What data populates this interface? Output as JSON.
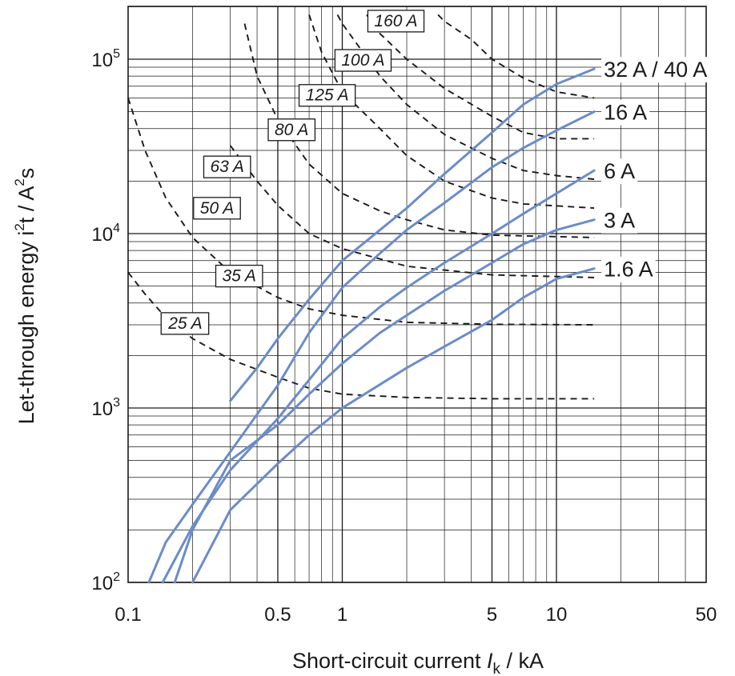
{
  "chart_data": {
    "type": "line",
    "xscale": "log",
    "yscale": "log",
    "xlim": [
      0.1,
      50
    ],
    "ylim": [
      100,
      200000
    ],
    "grid": true,
    "xlabel": {
      "prefix": "Short-circuit current ",
      "italic": "I",
      "subscript": "k",
      "suffix": " / kA"
    },
    "ylabel": {
      "a": "Let-through energy i",
      "sup1": "2",
      "b": "t / A",
      "sup2": "2",
      "c": "s"
    },
    "x_ticks": [
      {
        "value": 0.1,
        "label": "0.1"
      },
      {
        "value": 0.5,
        "label": "0.5"
      },
      {
        "value": 1,
        "label": "1"
      },
      {
        "value": 5,
        "label": "5"
      },
      {
        "value": 10,
        "label": "10"
      },
      {
        "value": 50,
        "label": "50"
      }
    ],
    "y_ticks": [
      {
        "value": 100,
        "base": "10",
        "exp": "2"
      },
      {
        "value": 1000,
        "base": "10",
        "exp": "3"
      },
      {
        "value": 10000,
        "base": "10",
        "exp": "4"
      },
      {
        "value": 100000,
        "base": "10",
        "exp": "5"
      }
    ],
    "series": [
      {
        "name": "1.6 A",
        "color": "#6b8cc8",
        "points": [
          [
            0.2,
            100
          ],
          [
            0.3,
            260
          ],
          [
            0.5,
            480
          ],
          [
            0.7,
            700
          ],
          [
            1,
            1000
          ],
          [
            2,
            1700
          ],
          [
            3,
            2250
          ],
          [
            5,
            3200
          ],
          [
            7,
            4300
          ],
          [
            10,
            5500
          ],
          [
            15,
            6300
          ]
        ]
      },
      {
        "name": "3 A",
        "color": "#6b8cc8",
        "points": [
          [
            0.165,
            100
          ],
          [
            0.2,
            200
          ],
          [
            0.3,
            500
          ],
          [
            0.5,
            800
          ],
          [
            0.7,
            1200
          ],
          [
            1,
            1800
          ],
          [
            1.5,
            2700
          ],
          [
            2,
            3400
          ],
          [
            3,
            4700
          ],
          [
            5,
            6800
          ],
          [
            7,
            8700
          ],
          [
            10,
            10500
          ],
          [
            15,
            12000
          ]
        ]
      },
      {
        "name": "6 A",
        "color": "#6b8cc8",
        "points": [
          [
            0.145,
            100
          ],
          [
            0.2,
            210
          ],
          [
            0.3,
            440
          ],
          [
            0.5,
            870
          ],
          [
            0.7,
            1450
          ],
          [
            1,
            2500
          ],
          [
            1.5,
            3800
          ],
          [
            2,
            4900
          ],
          [
            3,
            6800
          ],
          [
            5,
            10000
          ],
          [
            7,
            13000
          ],
          [
            10,
            17000
          ],
          [
            15,
            23000
          ]
        ]
      },
      {
        "name": "16 A",
        "color": "#6b8cc8",
        "points": [
          [
            0.125,
            100
          ],
          [
            0.15,
            170
          ],
          [
            0.2,
            280
          ],
          [
            0.3,
            560
          ],
          [
            0.5,
            1350
          ],
          [
            0.7,
            2700
          ],
          [
            1,
            4900
          ],
          [
            1.5,
            7700
          ],
          [
            2,
            10500
          ],
          [
            3,
            15000
          ],
          [
            5,
            24000
          ],
          [
            7,
            31000
          ],
          [
            10,
            39000
          ],
          [
            15,
            50000
          ]
        ]
      },
      {
        "name": "32 A / 40 A",
        "color": "#6b8cc8",
        "points": [
          [
            0.3,
            1100
          ],
          [
            0.4,
            1700
          ],
          [
            0.5,
            2500
          ],
          [
            0.7,
            4200
          ],
          [
            1,
            7000
          ],
          [
            1.5,
            10500
          ],
          [
            2,
            14000
          ],
          [
            3,
            22000
          ],
          [
            5,
            38000
          ],
          [
            7,
            55000
          ],
          [
            10,
            72000
          ],
          [
            15,
            88000
          ]
        ]
      }
    ],
    "fuse_curves": [
      {
        "name": "25 A",
        "label_at": [
          0.185,
          3100
        ],
        "points": [
          [
            0.1,
            6000
          ],
          [
            0.12,
            4500
          ],
          [
            0.15,
            3300
          ],
          [
            0.2,
            2500
          ],
          [
            0.3,
            1900
          ],
          [
            0.5,
            1500
          ],
          [
            0.7,
            1300
          ],
          [
            1,
            1200
          ],
          [
            2,
            1150
          ],
          [
            5,
            1130
          ],
          [
            15,
            1130
          ]
        ]
      },
      {
        "name": "35 A",
        "label_at": [
          0.33,
          5800
        ],
        "points": [
          [
            0.1,
            60000
          ],
          [
            0.12,
            30000
          ],
          [
            0.15,
            16000
          ],
          [
            0.2,
            9500
          ],
          [
            0.3,
            6000
          ],
          [
            0.5,
            4300
          ],
          [
            0.7,
            3700
          ],
          [
            1,
            3400
          ],
          [
            2,
            3100
          ],
          [
            5,
            3020
          ],
          [
            15,
            3000
          ]
        ]
      },
      {
        "name": "50 A",
        "label_at": [
          0.26,
          14200
        ],
        "points": [
          [
            0.3,
            32000
          ],
          [
            0.4,
            20000
          ],
          [
            0.5,
            14500
          ],
          [
            0.7,
            10000
          ],
          [
            1,
            8200
          ],
          [
            2,
            6500
          ],
          [
            5,
            5800
          ],
          [
            15,
            5600
          ]
        ]
      },
      {
        "name": "63 A",
        "label_at": [
          0.29,
          24500
        ],
        "points": [
          [
            0.35,
            160000
          ],
          [
            0.4,
            80000
          ],
          [
            0.5,
            45000
          ],
          [
            0.7,
            25000
          ],
          [
            1,
            17000
          ],
          [
            1.5,
            13500
          ],
          [
            2,
            12000
          ],
          [
            3,
            10500
          ],
          [
            5,
            9800
          ],
          [
            15,
            9500
          ]
        ]
      },
      {
        "name": "80 A",
        "label_at": [
          0.58,
          40000
        ],
        "points": [
          [
            0.7,
            180000
          ],
          [
            0.8,
            110000
          ],
          [
            1,
            65000
          ],
          [
            1.5,
            40000
          ],
          [
            2,
            28000
          ],
          [
            3,
            20000
          ],
          [
            5,
            16000
          ],
          [
            7,
            14800
          ],
          [
            15,
            14000
          ]
        ]
      },
      {
        "name": "125 A",
        "label_at": [
          0.85,
          63000
        ],
        "points": [
          [
            0.95,
            180000
          ],
          [
            1,
            160000
          ],
          [
            1.5,
            80000
          ],
          [
            2,
            55000
          ],
          [
            3,
            37000
          ],
          [
            5,
            27000
          ],
          [
            7,
            23000
          ],
          [
            10,
            21500
          ],
          [
            15,
            20500
          ]
        ]
      },
      {
        "name": "100 A",
        "label_at": [
          1.25,
          100000
        ],
        "points": [
          [
            1.3,
            180000
          ],
          [
            1.5,
            140000
          ],
          [
            2,
            100000
          ],
          [
            3,
            68000
          ],
          [
            5,
            47000
          ],
          [
            7,
            38000
          ],
          [
            10,
            35000
          ],
          [
            15,
            35000
          ]
        ]
      },
      {
        "name": "160 A",
        "label_at": [
          1.78,
          168000
        ],
        "points": [
          [
            2.8,
            180000
          ],
          [
            3,
            165000
          ],
          [
            4,
            130000
          ],
          [
            5,
            100000
          ],
          [
            7,
            78000
          ],
          [
            10,
            65000
          ],
          [
            15,
            60000
          ]
        ]
      }
    ]
  }
}
